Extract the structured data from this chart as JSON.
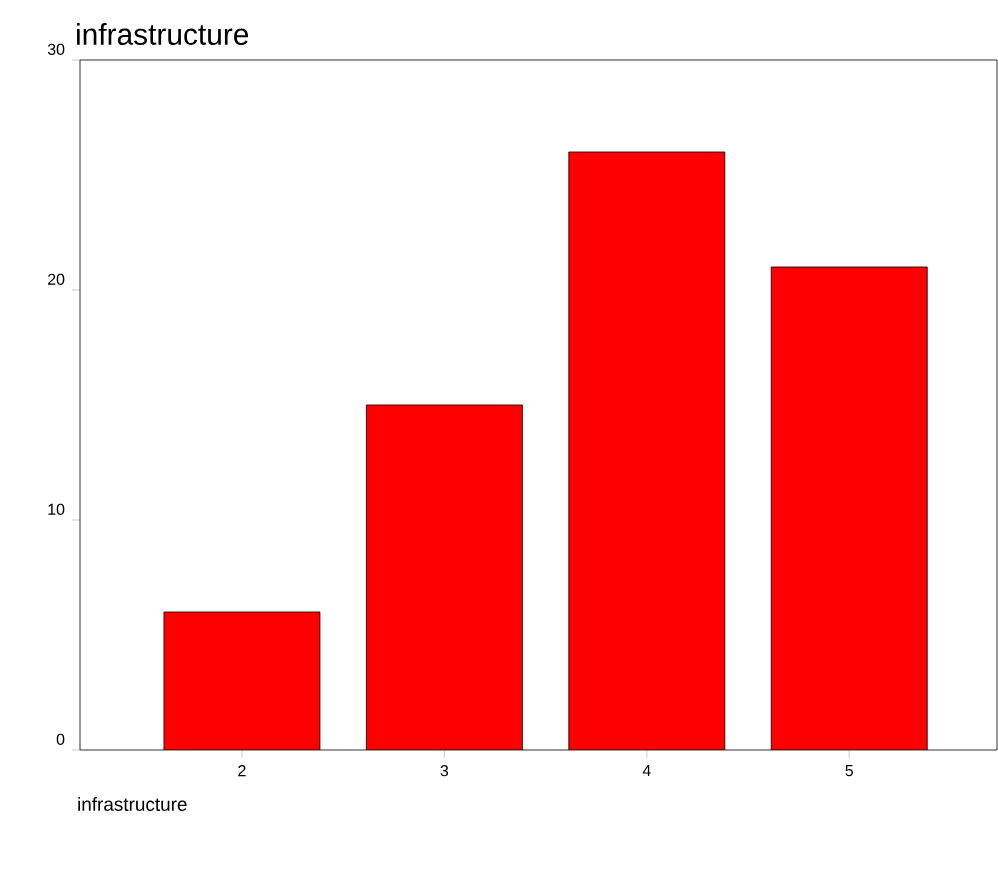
{
  "chart_data": {
    "type": "bar",
    "title": "infrastructure",
    "xlabel": "infrastructure",
    "categories": [
      "2",
      "3",
      "4",
      "5"
    ],
    "values": [
      6,
      15,
      26,
      21
    ],
    "color": "#ff0000",
    "ylim": [
      0,
      30
    ],
    "yticks": [
      0,
      10,
      20,
      30
    ]
  }
}
